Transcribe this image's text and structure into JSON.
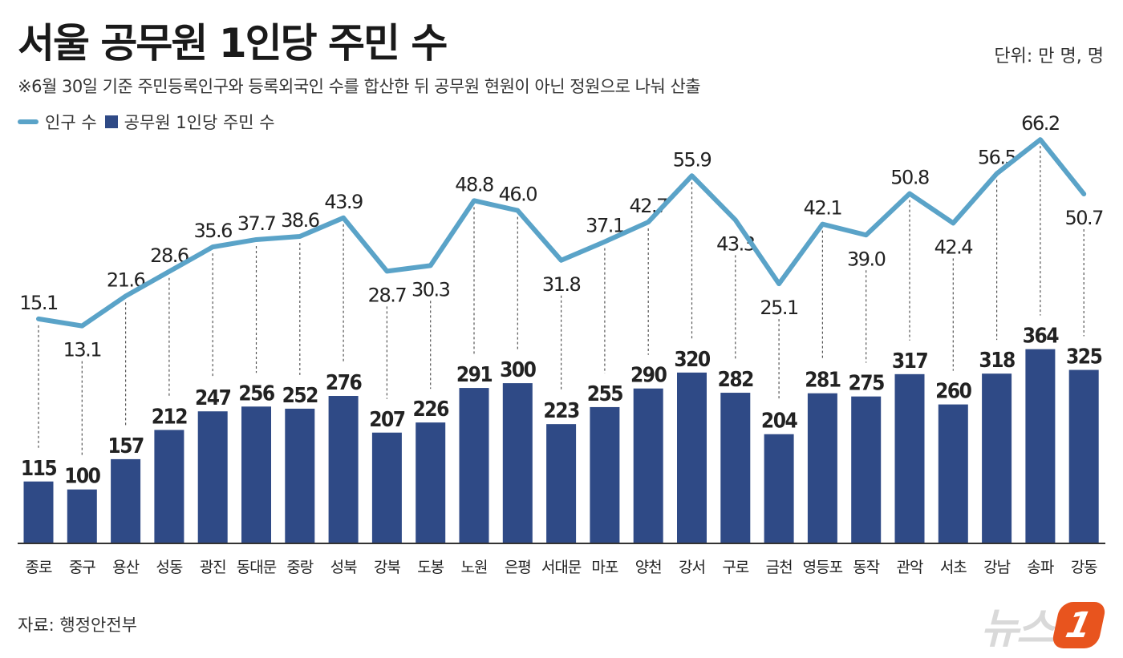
{
  "header": {
    "title": "서울 공무원 1인당 주민 수",
    "unit": "단위: 만 명, 명",
    "note": "※6월 30일 기준 주민등록인구와 등록외국인 수를 합산한 뒤 공무원 현원이 아닌 정원으로 나눠 산출"
  },
  "legend": {
    "population_label": "인구 수",
    "per_official_label": "공무원 1인당 주민 수"
  },
  "footer": {
    "source": "자료: 행정안전부",
    "logo_text": "뉴스",
    "logo_mark": "1"
  },
  "colors": {
    "line": "#5aa3c8",
    "bar": "#2f4a86",
    "text": "#222222"
  },
  "chart_data": {
    "type": "bar",
    "categories": [
      "종로",
      "중구",
      "용산",
      "성동",
      "광진",
      "동대문",
      "중랑",
      "성북",
      "강북",
      "도봉",
      "노원",
      "은평",
      "서대문",
      "마포",
      "양천",
      "강서",
      "구로",
      "금천",
      "영등포",
      "동작",
      "관악",
      "서초",
      "강남",
      "송파",
      "강동"
    ],
    "series": [
      {
        "name": "인구 수",
        "type": "line",
        "values": [
          15.1,
          13.1,
          21.6,
          28.6,
          35.6,
          37.7,
          38.6,
          43.9,
          28.7,
          30.3,
          48.8,
          46.0,
          31.8,
          37.1,
          42.7,
          55.9,
          43.3,
          25.1,
          42.1,
          39.0,
          50.8,
          42.4,
          56.5,
          66.2,
          50.7
        ]
      },
      {
        "name": "공무원 1인당 주민 수",
        "type": "bar",
        "values": [
          115,
          100,
          157,
          212,
          247,
          256,
          252,
          276,
          207,
          226,
          291,
          300,
          223,
          255,
          290,
          320,
          282,
          204,
          281,
          275,
          317,
          260,
          318,
          364,
          325
        ]
      }
    ],
    "population_labels": [
      "15.1",
      "13.1",
      "21.6",
      "28.6",
      "35.6",
      "37.7",
      "38.6",
      "43.9",
      "28.7",
      "30.3",
      "48.8",
      "46.0",
      "31.8",
      "37.1",
      "42.7",
      "55.9",
      "43.3",
      "25.1",
      "42.1",
      "39.0",
      "50.8",
      "42.4",
      "56.5",
      "66.2",
      "50.7"
    ],
    "population_label_position": [
      "above",
      "below",
      "above",
      "above",
      "above",
      "above",
      "above",
      "above",
      "below",
      "below",
      "above",
      "above",
      "below",
      "above",
      "above",
      "above",
      "below",
      "below",
      "above",
      "below",
      "above",
      "below",
      "above",
      "above",
      "below"
    ],
    "grid": false,
    "legend_position": "top-left"
  }
}
